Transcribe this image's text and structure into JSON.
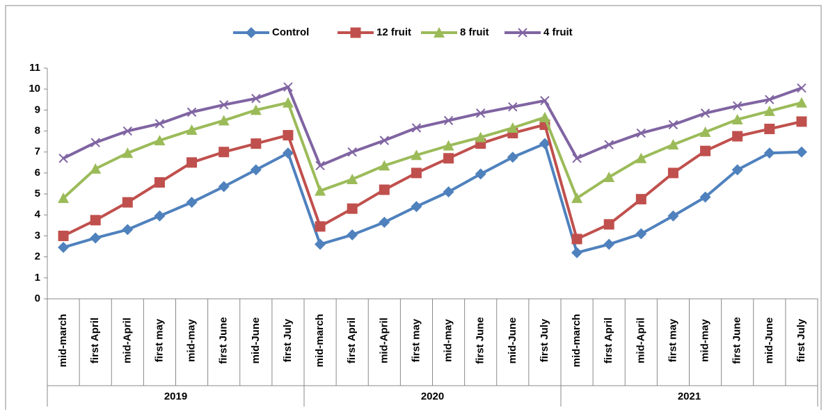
{
  "chart_data": {
    "type": "line",
    "categories": [
      "mid-march",
      "first April",
      "mid-April",
      "first may",
      "mid-may",
      "first June",
      "mid-June",
      "first July",
      "mid-march",
      "first April",
      "mid-April",
      "first may",
      "mid-may",
      "first June",
      "mid-June",
      "first July",
      "mid-march",
      "first April",
      "mid-April",
      "first may",
      "mid-may",
      "first June",
      "mid-June",
      "first July"
    ],
    "groups": [
      "2019",
      "2020",
      "2021"
    ],
    "series": [
      {
        "name": "Control",
        "color": "#4f81bd",
        "marker": "diamond",
        "values": [
          2.45,
          2.9,
          3.3,
          3.95,
          4.6,
          5.35,
          6.15,
          6.95,
          2.6,
          3.05,
          3.65,
          4.4,
          5.1,
          5.95,
          6.75,
          7.4,
          2.2,
          2.6,
          3.1,
          3.95,
          4.85,
          6.15,
          6.95,
          7.0
        ]
      },
      {
        "name": "12 fruit",
        "color": "#c0504d",
        "marker": "square",
        "values": [
          3.0,
          3.75,
          4.6,
          5.55,
          6.5,
          7.0,
          7.4,
          7.8,
          3.45,
          4.3,
          5.2,
          6.0,
          6.7,
          7.4,
          7.9,
          8.3,
          2.85,
          3.55,
          4.75,
          6.0,
          7.05,
          7.75,
          8.1,
          8.45
        ]
      },
      {
        "name": "8 fruit",
        "color": "#9bbb59",
        "marker": "triangle",
        "values": [
          4.8,
          6.2,
          6.95,
          7.55,
          8.05,
          8.5,
          9.0,
          9.35,
          5.15,
          5.7,
          6.35,
          6.85,
          7.3,
          7.7,
          8.15,
          8.65,
          4.8,
          5.8,
          6.7,
          7.35,
          7.95,
          8.55,
          8.95,
          9.35
        ]
      },
      {
        "name": "4 fruit",
        "color": "#8064a2",
        "marker": "x",
        "values": [
          6.7,
          7.45,
          8.0,
          8.35,
          8.9,
          9.25,
          9.55,
          10.1,
          6.35,
          7.0,
          7.55,
          8.15,
          8.5,
          8.85,
          9.15,
          9.45,
          6.7,
          7.35,
          7.9,
          8.3,
          8.85,
          9.2,
          9.5,
          10.05
        ]
      }
    ],
    "ylim": [
      0,
      11
    ],
    "yticks": [
      0,
      1,
      2,
      3,
      4,
      5,
      6,
      7,
      8,
      9,
      10,
      11
    ],
    "grid": false,
    "legend": "top"
  }
}
